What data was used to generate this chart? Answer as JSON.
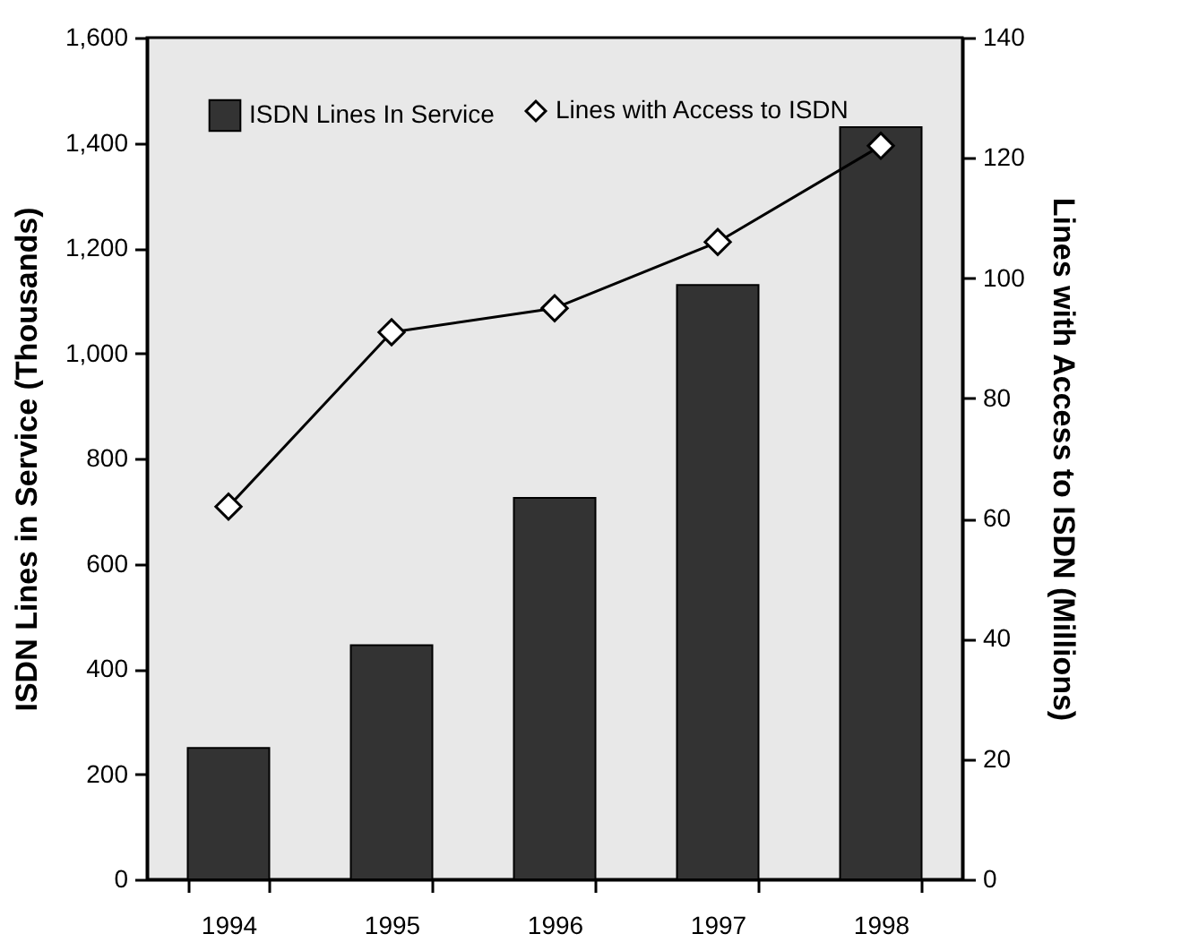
{
  "chart_data": {
    "type": "bar",
    "ylabel": "ISDN Lines in Service (Thousands)",
    "y2label": "Lines with Access to ISDN (Millions)",
    "categories": [
      "1994",
      "1995",
      "1996",
      "1997",
      "1998"
    ],
    "series": [
      {
        "name": "ISDN Lines In Service",
        "type": "bar",
        "color": "#333333",
        "values": [
          250,
          445,
          725,
          1130,
          1430
        ]
      },
      {
        "name": "Lines with Access to ISDN",
        "type": "line",
        "axis": "y2",
        "color": "#000000",
        "marker": "diamond",
        "values": [
          62,
          91,
          95,
          106,
          122
        ]
      }
    ],
    "ylim": [
      0,
      1600
    ],
    "yticks": [
      0,
      {
        "value": 200,
        "label": "200"
      },
      {
        "value": 400,
        "label": "400"
      },
      {
        "value": 600,
        "label": "600"
      },
      {
        "value": 800,
        "label": "800"
      },
      {
        "value": 1000,
        "label": "1,000"
      },
      {
        "value": 1200,
        "label": "1,200"
      },
      {
        "value": 1400,
        "label": "1,400"
      },
      {
        "value": 1600,
        "label": "1,600"
      }
    ],
    "y2lim": [
      0,
      140
    ],
    "y2ticks": [
      0,
      20,
      40,
      60,
      80,
      100,
      120,
      140
    ],
    "grid": false,
    "legend": "top left"
  }
}
